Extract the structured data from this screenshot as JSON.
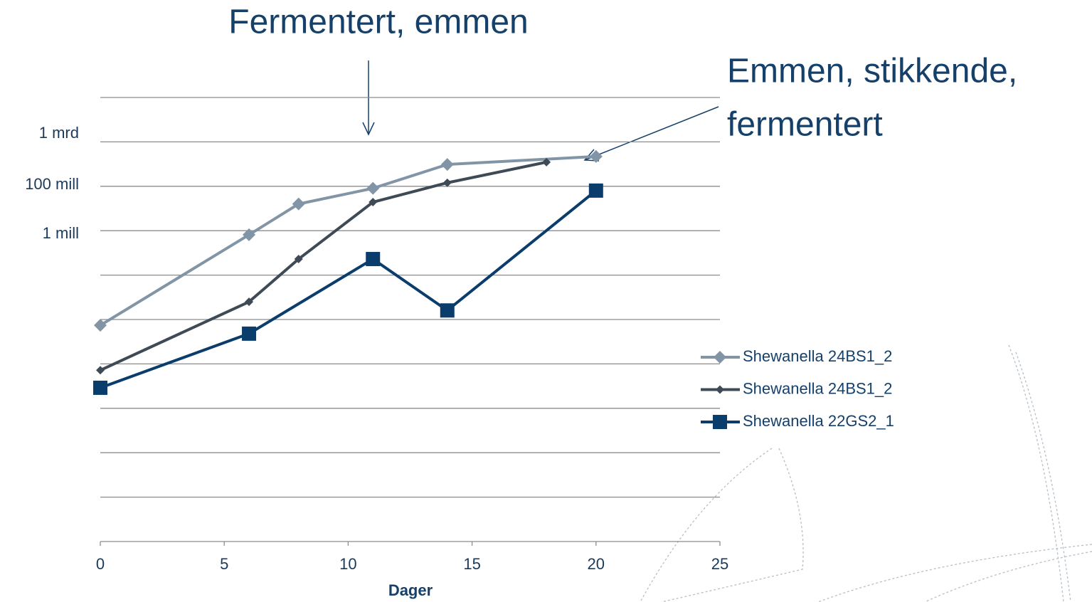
{
  "chart_data": {
    "type": "line",
    "annotations": [
      "Fermentert, emmen",
      [
        "Emmen, stikkende,",
        "fermentert"
      ]
    ],
    "x_label": "Dager",
    "y_axis_notes": [
      "1 mrd",
      "100 mill",
      "1 mill"
    ],
    "xlim": [
      0,
      25
    ],
    "xticks": [
      0,
      5,
      10,
      15,
      20,
      25
    ],
    "ylim": [
      1,
      10000000000
    ],
    "yticks": [
      1,
      10,
      100,
      1000,
      10000,
      100000,
      1000000,
      10000000,
      100000000,
      1000000000,
      10000000000
    ],
    "log_scale": "y",
    "grid": true,
    "legend": "right",
    "series": [
      {
        "name": "Shewanella 24BS1_2",
        "color": "#8295a6",
        "marker": "diamond",
        "x": [
          0,
          6,
          8,
          11,
          14,
          20
        ],
        "values": [
          74000,
          8100000,
          40000000,
          90000000,
          310000000,
          470000000
        ]
      },
      {
        "name": "Shewanella 24BS1_2",
        "color": "#3e4a55",
        "marker": "diamond",
        "x": [
          0,
          6,
          8,
          11,
          14,
          18
        ],
        "values": [
          7200,
          250000,
          2300000,
          44000000,
          120000000,
          350000000
        ]
      },
      {
        "name": "Shewanella 22GS2_1",
        "color": "#0a3d6b",
        "marker": "square",
        "x": [
          0,
          6,
          11,
          14,
          20
        ],
        "values": [
          2900,
          48000,
          2300000,
          160000,
          80000000
        ]
      }
    ]
  }
}
